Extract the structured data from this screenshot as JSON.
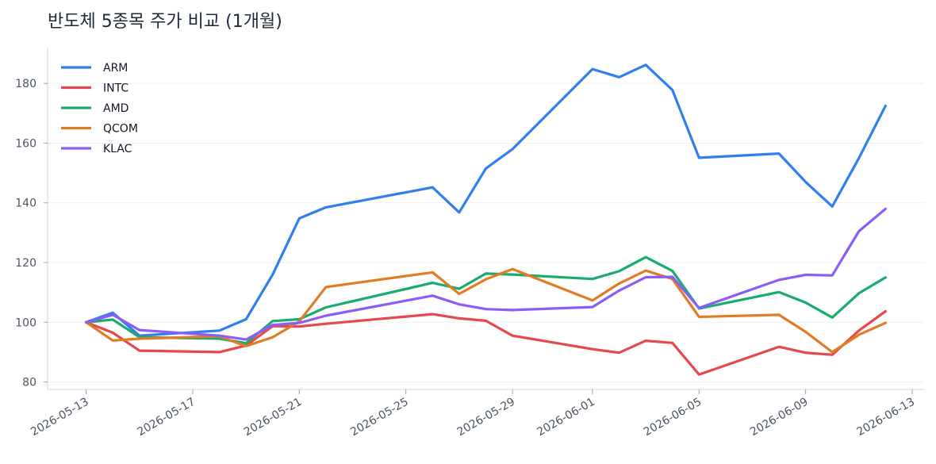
{
  "chart_data": {
    "type": "line",
    "title": "반도체 5종목 주가 비교 (1개월)",
    "xlabel": "",
    "ylabel": "",
    "ylim": [
      77.5,
      192
    ],
    "yticks": [
      80,
      100,
      120,
      140,
      160,
      180
    ],
    "xlim": [
      "2026-05-12",
      "2026-06-13"
    ],
    "xticks": [
      "2026-05-13",
      "2026-05-17",
      "2026-05-21",
      "2026-05-25",
      "2026-05-29",
      "2026-06-01",
      "2026-06-05",
      "2026-06-09",
      "2026-06-13"
    ],
    "grid": "horizontal",
    "legend_position": "top-left",
    "x": [
      "2026-05-13",
      "2026-05-14",
      "2026-05-15",
      "2026-05-18",
      "2026-05-19",
      "2026-05-20",
      "2026-05-21",
      "2026-05-22",
      "2026-05-26",
      "2026-05-27",
      "2026-05-28",
      "2026-05-29",
      "2026-06-01",
      "2026-06-02",
      "2026-06-03",
      "2026-06-04",
      "2026-06-05",
      "2026-06-08",
      "2026-06-09",
      "2026-06-10",
      "2026-06-11",
      "2026-06-12"
    ],
    "series": [
      {
        "name": "ARM",
        "color": "#2f80ed",
        "values": [
          100,
          103.2,
          95.5,
          97.2,
          101,
          116,
          134.8,
          138.5,
          145.2,
          136.8,
          151.5,
          158,
          184.8,
          182.1,
          186.2,
          177.8,
          155.1,
          156.5,
          147,
          138.8,
          155,
          172.5
        ]
      },
      {
        "name": "INTC",
        "color": "#e5484d",
        "values": [
          100,
          96.5,
          90.5,
          90,
          92.2,
          98.7,
          98.6,
          99.5,
          102.7,
          101.3,
          100.5,
          95.5,
          91,
          89.8,
          93.8,
          93.1,
          82.5,
          91.8,
          89.8,
          89.1,
          97.2,
          103.7
        ]
      },
      {
        "name": "AMD",
        "color": "#1aab6e",
        "values": [
          100,
          100.9,
          95,
          94.5,
          93,
          100.4,
          101,
          105,
          113.2,
          111.2,
          116.3,
          116,
          114.5,
          117.1,
          121.8,
          117.2,
          104.6,
          110.1,
          106.6,
          101.6,
          109.7,
          115
        ]
      },
      {
        "name": "QCOM",
        "color": "#e07c24",
        "values": [
          100,
          93.9,
          94.5,
          95.3,
          92,
          95,
          100.3,
          111.8,
          116.7,
          109.5,
          114.4,
          117.8,
          107.3,
          113,
          117.3,
          114.5,
          101.8,
          102.5,
          96.8,
          90,
          95.8,
          99.8
        ]
      },
      {
        "name": "KLAC",
        "color": "#8b5cf6",
        "values": [
          100,
          102.5,
          97.4,
          95.5,
          94.2,
          99.1,
          99.8,
          102.2,
          108.9,
          106,
          104.4,
          104.1,
          105.1,
          110.6,
          115.1,
          115.2,
          104.8,
          114.2,
          115.9,
          115.7,
          130.5,
          138
        ]
      }
    ]
  }
}
